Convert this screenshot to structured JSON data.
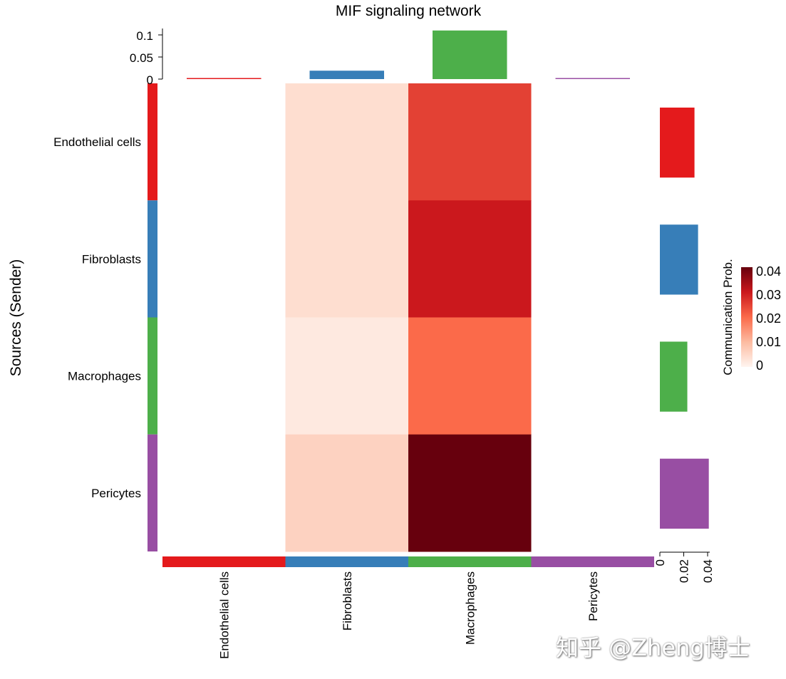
{
  "chart_data": {
    "type": "heatmap",
    "title": "MIF signaling network",
    "ylabel": "Sources (Sender)",
    "rows": [
      "Endothelial cells",
      "Fibroblasts",
      "Macrophages",
      "Pericytes"
    ],
    "columns": [
      "Endothelial cells",
      "Fibroblasts",
      "Macrophages",
      "Pericytes"
    ],
    "values": [
      [
        0,
        0.004,
        0.025,
        0
      ],
      [
        0,
        0.004,
        0.03,
        0
      ],
      [
        0,
        0.002,
        0.02,
        0
      ],
      [
        0,
        0.006,
        0.04,
        0
      ]
    ],
    "group_colors": [
      "#E41A1C",
      "#377EB8",
      "#4DAF4A",
      "#984EA3"
    ],
    "top_bars": {
      "values": [
        0.001,
        0.019,
        0.11,
        0.001
      ],
      "ticks": [
        "0",
        "0.05",
        "0.1"
      ],
      "range": [
        0,
        0.11
      ]
    },
    "right_bars": {
      "values": [
        0.029,
        0.032,
        0.023,
        0.041
      ],
      "ticks": [
        "0",
        "0.02",
        "0.04"
      ],
      "range": [
        0,
        0.04
      ]
    },
    "legend": {
      "title": "Communication Prob.",
      "ticks": [
        "0",
        "0.01",
        "0.02",
        "0.03",
        "0.04"
      ],
      "range": [
        0,
        0.04
      ],
      "colors": [
        "#FFF5F0",
        "#FCBBA1",
        "#FB6A4A",
        "#CB181D",
        "#67000D"
      ]
    }
  },
  "watermark": "知乎 @Zheng博士"
}
